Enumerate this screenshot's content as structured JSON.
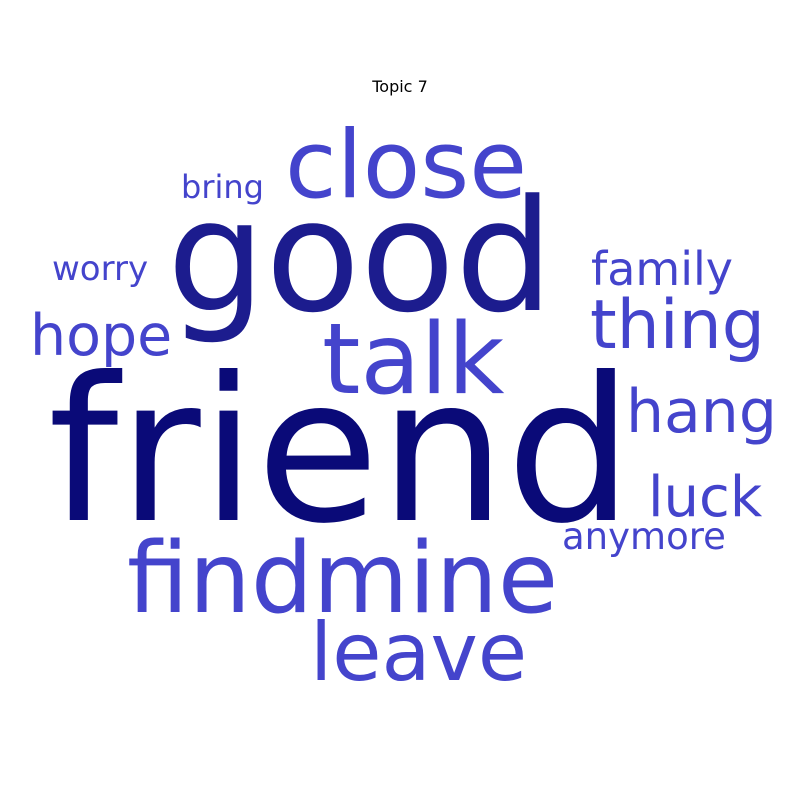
{
  "title": "Topic 7",
  "colors": {
    "darkest": "#0a0a78",
    "dark": "#1c1c8e",
    "medium": "#4444cc",
    "title": "#000000"
  },
  "words": [
    {
      "text": "friend",
      "tone": "darkest"
    },
    {
      "text": "good",
      "tone": "dark"
    },
    {
      "text": "close",
      "tone": "medium"
    },
    {
      "text": "talk",
      "tone": "medium"
    },
    {
      "text": "thing",
      "tone": "medium"
    },
    {
      "text": "findmine",
      "tone": "medium"
    },
    {
      "text": "leave",
      "tone": "medium"
    },
    {
      "text": "hang",
      "tone": "medium"
    },
    {
      "text": "luck",
      "tone": "medium"
    },
    {
      "text": "hope",
      "tone": "medium"
    },
    {
      "text": "family",
      "tone": "medium"
    },
    {
      "text": "anymore",
      "tone": "medium"
    },
    {
      "text": "worry",
      "tone": "medium"
    },
    {
      "text": "bring",
      "tone": "medium"
    }
  ]
}
